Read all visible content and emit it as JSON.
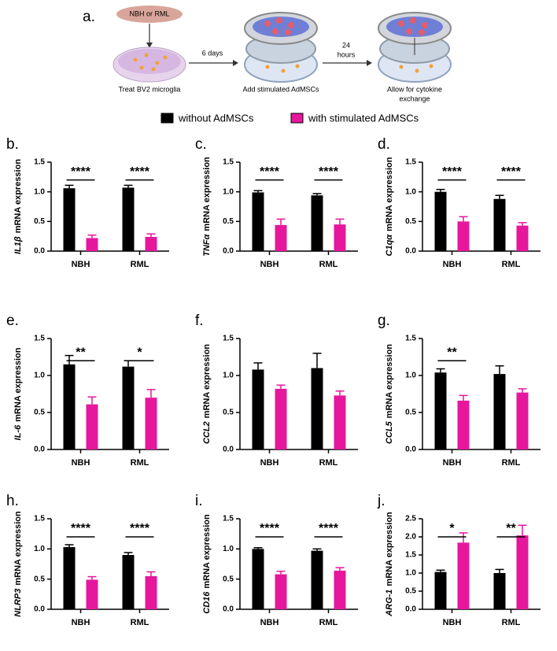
{
  "panel_a": {
    "label": "a.",
    "inoculum": "NBH or RML",
    "step_1": [
      "Treat BV2 microglia"
    ],
    "interval_1": [
      "6 days"
    ],
    "step_2": [
      "Add stimulated AdMSCs"
    ],
    "interval_2": [
      "24",
      "hours"
    ],
    "step_3": [
      "Allow for cytokine",
      "exchange"
    ]
  },
  "legend": [
    {
      "name": "without AdMSCs",
      "color": "#000000"
    },
    {
      "name": "with stimulated AdMSCs",
      "color": "#e6179c"
    }
  ],
  "chart_data": [
    {
      "type": "bar",
      "label": "b.",
      "gene": "IL1β",
      "ylabel": "mRNA expression",
      "categories": [
        "NBH",
        "RML"
      ],
      "series": [
        {
          "values": [
            1.06,
            1.07
          ],
          "errors": [
            0.05,
            0.04
          ]
        },
        {
          "values": [
            0.22,
            0.24
          ],
          "errors": [
            0.05,
            0.05
          ]
        }
      ],
      "significance": [
        "****",
        "****"
      ],
      "ylim": [
        0,
        1.5
      ],
      "yticks": [
        {
          "value": 0,
          "label": "0.0"
        },
        0.5,
        {
          "value": 1,
          "label": "1.0"
        },
        1.5
      ]
    },
    {
      "type": "bar",
      "label": "c.",
      "gene": "TNFα",
      "ylabel": "mRNA expression",
      "categories": [
        "NBH",
        "RML"
      ],
      "series": [
        {
          "values": [
            0.99,
            0.94
          ],
          "errors": [
            0.03,
            0.03
          ]
        },
        {
          "values": [
            0.44,
            0.45
          ],
          "errors": [
            0.1,
            0.09
          ]
        }
      ],
      "significance": [
        "****",
        "****"
      ],
      "ylim": [
        0,
        1.5
      ],
      "yticks": [
        {
          "value": 0,
          "label": "0.0"
        },
        0.5,
        {
          "value": 1,
          "label": "1.0"
        },
        1.5
      ]
    },
    {
      "type": "bar",
      "label": "d.",
      "gene": "C1qα",
      "ylabel": "mRNA expression",
      "categories": [
        "NBH",
        "RML"
      ],
      "series": [
        {
          "values": [
            1.0,
            0.88
          ],
          "errors": [
            0.04,
            0.06
          ]
        },
        {
          "values": [
            0.5,
            0.43
          ],
          "errors": [
            0.08,
            0.05
          ]
        }
      ],
      "significance": [
        "****",
        "****"
      ],
      "ylim": [
        0,
        1.5
      ],
      "yticks": [
        {
          "value": 0,
          "label": "0.0"
        },
        0.5,
        {
          "value": 1,
          "label": "1.0"
        },
        1.5
      ]
    },
    {
      "type": "bar",
      "label": "e.",
      "gene": "IL-6",
      "ylabel": "mRNA expression",
      "categories": [
        "NBH",
        "RML"
      ],
      "series": [
        {
          "values": [
            1.15,
            1.12
          ],
          "errors": [
            0.12,
            0.08
          ]
        },
        {
          "values": [
            0.61,
            0.7
          ],
          "errors": [
            0.1,
            0.11
          ]
        }
      ],
      "significance": [
        "**",
        "*"
      ],
      "ylim": [
        0,
        1.5
      ],
      "yticks": [
        {
          "value": 0,
          "label": "0.0"
        },
        0.5,
        {
          "value": 1,
          "label": "1.0"
        },
        1.5
      ]
    },
    {
      "type": "bar",
      "label": "f.",
      "gene": "CCL2",
      "ylabel": "mRNA expression",
      "categories": [
        "NBH",
        "RML"
      ],
      "series": [
        {
          "values": [
            1.08,
            1.1
          ],
          "errors": [
            0.09,
            0.2
          ]
        },
        {
          "values": [
            0.82,
            0.73
          ],
          "errors": [
            0.05,
            0.06
          ]
        }
      ],
      "significance": [
        null,
        null
      ],
      "ylim": [
        0,
        1.5
      ],
      "yticks": [
        {
          "value": 0,
          "label": "0.0"
        },
        0.5,
        {
          "value": 1,
          "label": "1.0"
        },
        1.5
      ]
    },
    {
      "type": "bar",
      "label": "g.",
      "gene": "CCL5",
      "ylabel": "mRNA expression",
      "categories": [
        "NBH",
        "RML"
      ],
      "series": [
        {
          "values": [
            1.04,
            1.02
          ],
          "errors": [
            0.05,
            0.11
          ]
        },
        {
          "values": [
            0.66,
            0.77
          ],
          "errors": [
            0.07,
            0.05
          ]
        }
      ],
      "significance": [
        "**",
        null
      ],
      "ylim": [
        0,
        1.5
      ],
      "yticks": [
        {
          "value": 0,
          "label": "0.0"
        },
        0.5,
        {
          "value": 1,
          "label": "1.0"
        },
        1.5
      ]
    },
    {
      "type": "bar",
      "label": "h.",
      "gene": "NLRP3",
      "ylabel": "mRNA expression",
      "categories": [
        "NBH",
        "RML"
      ],
      "series": [
        {
          "values": [
            1.03,
            0.9
          ],
          "errors": [
            0.04,
            0.04
          ]
        },
        {
          "values": [
            0.49,
            0.55
          ],
          "errors": [
            0.05,
            0.07
          ]
        }
      ],
      "significance": [
        "****",
        "****"
      ],
      "ylim": [
        0,
        1.5
      ],
      "yticks": [
        {
          "value": 0,
          "label": "0.0"
        },
        0.5,
        {
          "value": 1,
          "label": "1.0"
        },
        1.5
      ]
    },
    {
      "type": "bar",
      "label": "i.",
      "gene": "CD16",
      "ylabel": "mRNA expression",
      "categories": [
        "NBH",
        "RML"
      ],
      "series": [
        {
          "values": [
            1.0,
            0.97
          ],
          "errors": [
            0.02,
            0.03
          ]
        },
        {
          "values": [
            0.58,
            0.64
          ],
          "errors": [
            0.05,
            0.05
          ]
        }
      ],
      "significance": [
        "****",
        "****"
      ],
      "ylim": [
        0,
        1.5
      ],
      "yticks": [
        {
          "value": 0,
          "label": "0.0"
        },
        0.5,
        {
          "value": 1,
          "label": "1.0"
        },
        1.5
      ]
    },
    {
      "type": "bar",
      "label": "j.",
      "gene": "ARG-1",
      "ylabel": "mRNA expression",
      "categories": [
        "NBH",
        "RML"
      ],
      "series": [
        {
          "values": [
            1.03,
            1.0
          ],
          "errors": [
            0.05,
            0.1
          ]
        },
        {
          "values": [
            1.84,
            2.04
          ],
          "errors": [
            0.27,
            0.28
          ]
        }
      ],
      "significance": [
        "*",
        "**"
      ],
      "ylim": [
        0,
        2.5
      ],
      "yticks": [
        {
          "value": 0,
          "label": "0.0"
        },
        0.5,
        {
          "value": 1,
          "label": "1.0"
        },
        1.5,
        {
          "value": 2,
          "label": "2.0"
        },
        2.5
      ]
    }
  ]
}
